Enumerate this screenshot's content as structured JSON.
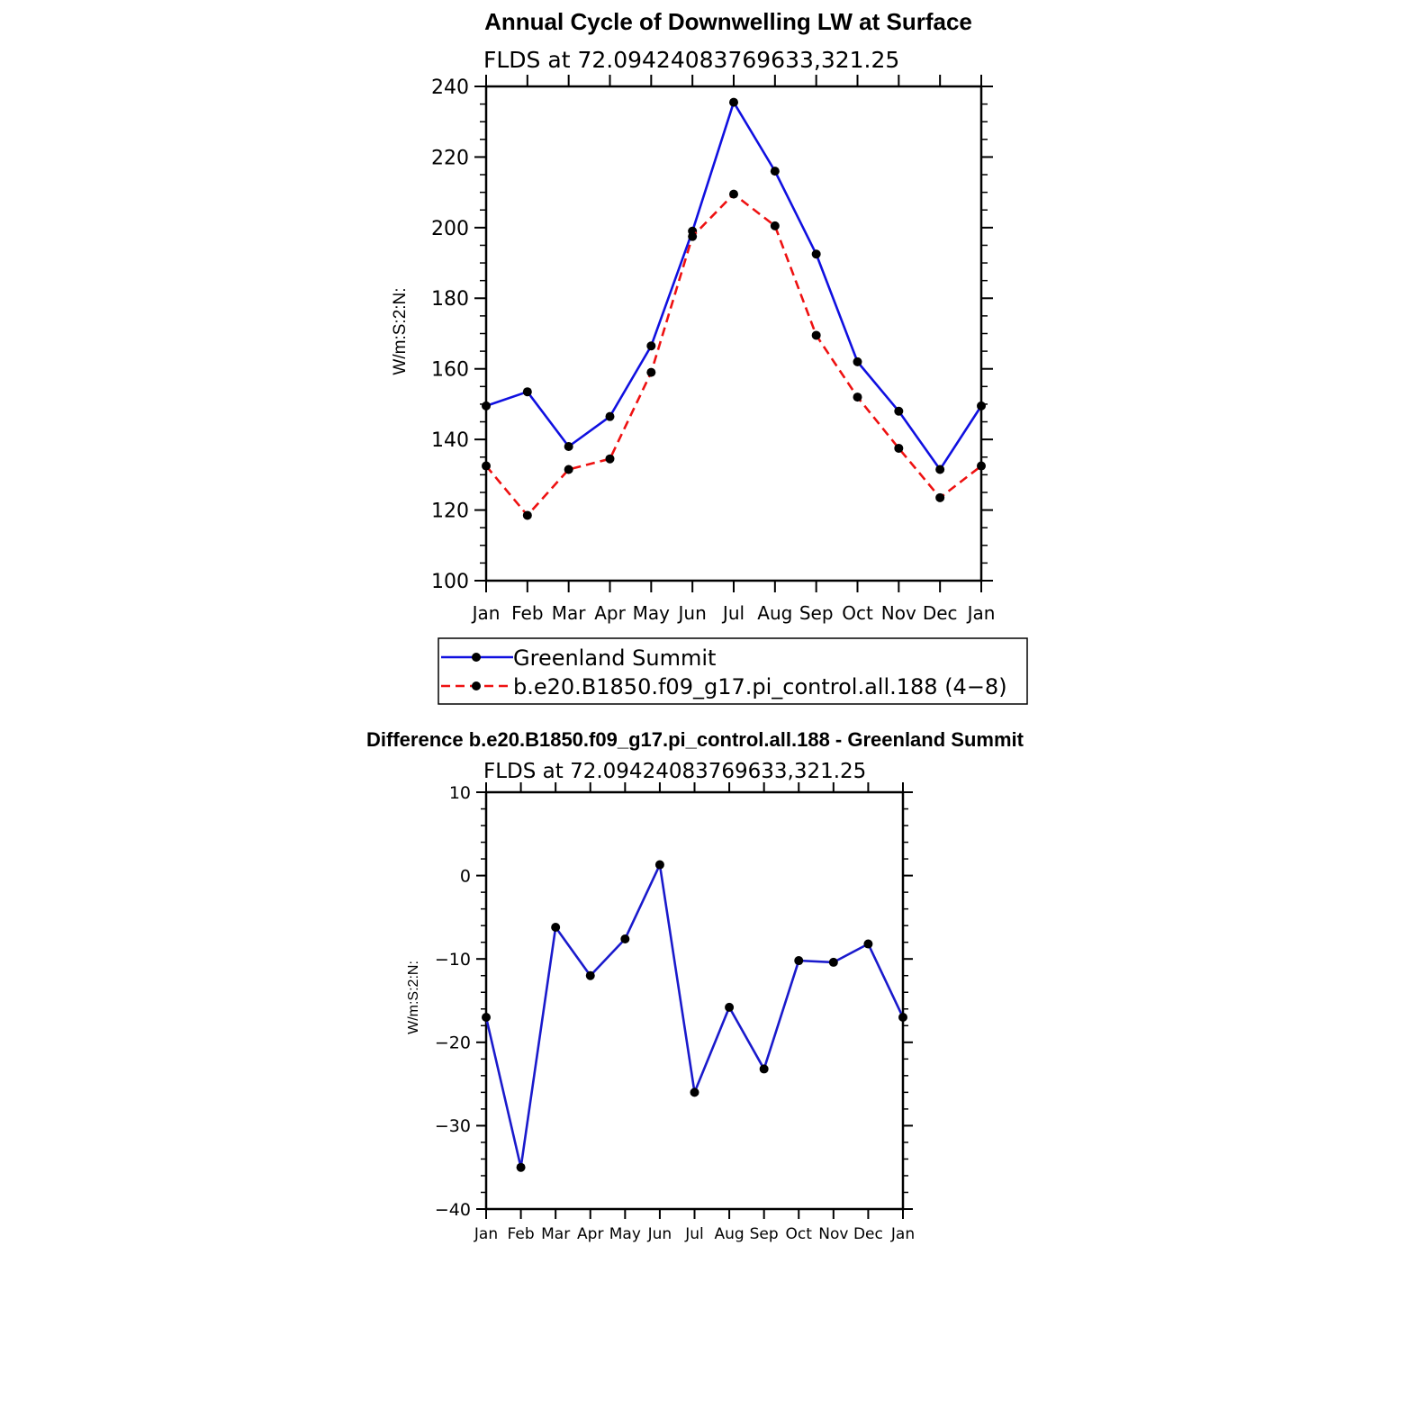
{
  "colors": {
    "observed": "#1010e0",
    "model": "#ee1111",
    "difference": "#1a1acc",
    "marker": "#000000",
    "axis": "#000000"
  },
  "chart_data": [
    {
      "type": "line",
      "title": "Annual Cycle of Downwelling LW at Surface",
      "subtitle": "FLDS at 72.09424083769633,321.25",
      "xlabel": "",
      "ylabel": "W/m:S:2:N:",
      "categories": [
        "Jan",
        "Feb",
        "Mar",
        "Apr",
        "May",
        "Jun",
        "Jul",
        "Aug",
        "Sep",
        "Oct",
        "Nov",
        "Dec",
        "Jan"
      ],
      "ylim": [
        100,
        240
      ],
      "yticks": [
        100,
        120,
        140,
        160,
        180,
        200,
        220,
        240
      ],
      "ytick_labels": [
        "100",
        "120",
        "140",
        "160",
        "180",
        "200",
        "220",
        "240"
      ],
      "series": [
        {
          "name": "Greenland Summit",
          "style": "solid",
          "color": "#1010e0",
          "values": [
            149.5,
            153.5,
            138.0,
            146.5,
            166.5,
            199.0,
            235.5,
            216.0,
            192.5,
            162.0,
            148.0,
            131.5,
            149.5
          ]
        },
        {
          "name": "b.e20.B1850.f09_g17.pi_control.all.188 (4−8)",
          "style": "dashed",
          "color": "#ee1111",
          "values": [
            132.5,
            118.5,
            131.5,
            134.5,
            159.0,
            197.5,
            209.5,
            200.5,
            169.5,
            152.0,
            137.5,
            123.5,
            132.5
          ]
        }
      ],
      "legend": [
        "Greenland Summit",
        "b.e20.B1850.f09_g17.pi_control.all.188 (4−8)"
      ]
    },
    {
      "type": "line",
      "title": "Difference b.e20.B1850.f09_g17.pi_control.all.188 - Greenland Summit",
      "subtitle": "FLDS at 72.09424083769633,321.25",
      "xlabel": "",
      "ylabel": "W/m:S:2:N:",
      "categories": [
        "Jan",
        "Feb",
        "Mar",
        "Apr",
        "May",
        "Jun",
        "Jul",
        "Aug",
        "Sep",
        "Oct",
        "Nov",
        "Dec",
        "Jan"
      ],
      "ylim": [
        -40,
        10
      ],
      "yticks": [
        -40,
        -30,
        -20,
        -10,
        0,
        10
      ],
      "ytick_labels": [
        "−40",
        "−30",
        "−20",
        "−10",
        "0",
        "10"
      ],
      "series": [
        {
          "name": "Difference",
          "style": "solid",
          "color": "#1a1acc",
          "values": [
            -17.0,
            -35.0,
            -6.2,
            -12.0,
            -7.6,
            1.3,
            -26.0,
            -15.8,
            -23.2,
            -10.2,
            -10.4,
            -8.2,
            -17.0
          ]
        }
      ]
    }
  ]
}
